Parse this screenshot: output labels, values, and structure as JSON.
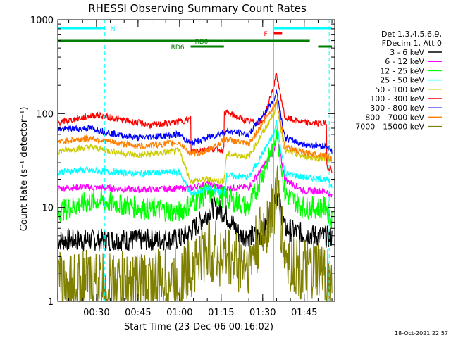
{
  "chart_data": {
    "type": "line",
    "title": "RHESSI Observing Summary Count Rates",
    "ylabel": "Count Rate (s⁻¹ detector⁻¹)",
    "xlabel": "Start Time (23-Dec-06 00:16:02)",
    "timestamp": "18-Oct-2021 22:57",
    "y_scale": "log",
    "ylim": [
      1,
      1000
    ],
    "y_ticks": [
      "1",
      "10",
      "100",
      "1000"
    ],
    "x_range_minutes": [
      "00:16:02",
      "01:56:00"
    ],
    "x_ticks": [
      "00:30",
      "00:45",
      "01:00",
      "01:15",
      "01:30",
      "01:45"
    ],
    "legend_header": [
      "Det 1,3,4,5,6,9,",
      "FDecim 1, Att 0"
    ],
    "flags": [
      {
        "label": "N",
        "color": "#00ffff",
        "segments": [
          [
            "00:16",
            "00:33"
          ],
          [
            "01:34",
            "01:55"
          ]
        ]
      },
      {
        "label": "F",
        "color": "#ff0000",
        "segments": [
          [
            "01:34",
            "01:37"
          ]
        ]
      },
      {
        "label": "RD0",
        "color": "#008000",
        "segments": [
          [
            "00:16",
            "01:16"
          ],
          [
            "01:16",
            "01:47"
          ]
        ]
      },
      {
        "label": "RD6",
        "color": "#008000",
        "segments": [
          [
            "01:04",
            "01:16"
          ],
          [
            "01:50",
            "01:55"
          ]
        ]
      }
    ],
    "vlines": [
      {
        "time": "00:33",
        "color": "#00ffff",
        "style": "dashed"
      },
      {
        "time": "01:34",
        "color": "#00ffff",
        "style": "solid"
      },
      {
        "time": "01:54",
        "color": "#00ffff",
        "style": "dashed"
      }
    ],
    "series": [
      {
        "name": "3 - 6 keV",
        "color": "#000000",
        "knots": [
          [
            "00:16",
            4.5
          ],
          [
            "00:30",
            4.5
          ],
          [
            "00:45",
            4.5
          ],
          [
            "01:00",
            4.6
          ],
          [
            "01:04",
            5.5
          ],
          [
            "01:09",
            8
          ],
          [
            "01:12",
            10
          ],
          [
            "01:16",
            9
          ],
          [
            "01:22",
            5
          ],
          [
            "01:30",
            5
          ],
          [
            "01:34",
            12
          ],
          [
            "01:35",
            15
          ],
          [
            "01:38",
            6
          ],
          [
            "01:45",
            5.2
          ],
          [
            "01:50",
            5
          ],
          [
            "01:55",
            4.8
          ]
        ]
      },
      {
        "name": "6 - 12 keV",
        "color": "#ff00ff",
        "knots": [
          [
            "00:16",
            16
          ],
          [
            "00:25",
            16.5
          ],
          [
            "00:35",
            16
          ],
          [
            "00:45",
            15.5
          ],
          [
            "01:00",
            16
          ],
          [
            "01:04",
            16
          ],
          [
            "01:10",
            18
          ],
          [
            "01:16",
            16
          ],
          [
            "01:25",
            16.5
          ],
          [
            "01:34",
            40
          ],
          [
            "01:35",
            60
          ],
          [
            "01:38",
            20
          ],
          [
            "01:45",
            15
          ],
          [
            "01:53",
            15
          ],
          [
            "01:55",
            13
          ]
        ]
      },
      {
        "name": "12 - 25 keV",
        "color": "#00ff00",
        "knots": [
          [
            "00:16",
            9
          ],
          [
            "00:25",
            11
          ],
          [
            "00:30",
            12
          ],
          [
            "00:45",
            10
          ],
          [
            "01:00",
            9
          ],
          [
            "01:04",
            11
          ],
          [
            "01:10",
            14
          ],
          [
            "01:16",
            13
          ],
          [
            "01:25",
            10
          ],
          [
            "01:34",
            45
          ],
          [
            "01:35",
            70
          ],
          [
            "01:38",
            14
          ],
          [
            "01:45",
            10
          ],
          [
            "01:53",
            10
          ],
          [
            "01:55",
            7.5
          ]
        ]
      },
      {
        "name": "25 - 50 keV",
        "color": "#00ffff",
        "knots": [
          [
            "00:16",
            24
          ],
          [
            "00:25",
            25
          ],
          [
            "00:35",
            24
          ],
          [
            "00:45",
            23
          ],
          [
            "01:00",
            24
          ],
          [
            "01:04",
            14
          ],
          [
            "01:10",
            16
          ],
          [
            "01:16",
            14
          ],
          [
            "01:17",
            22
          ],
          [
            "01:25",
            21
          ],
          [
            "01:34",
            60
          ],
          [
            "01:35",
            80
          ],
          [
            "01:38",
            23
          ],
          [
            "01:45",
            21
          ],
          [
            "01:53",
            20
          ],
          [
            "01:55",
            17
          ]
        ]
      },
      {
        "name": "50 - 100 keV",
        "color": "#cccc00",
        "knots": [
          [
            "00:16",
            40
          ],
          [
            "00:28",
            44
          ],
          [
            "00:35",
            40
          ],
          [
            "00:45",
            36
          ],
          [
            "01:00",
            40
          ],
          [
            "01:04",
            19
          ],
          [
            "01:10",
            20
          ],
          [
            "01:16",
            19
          ],
          [
            "01:17",
            37
          ],
          [
            "01:25",
            35
          ],
          [
            "01:34",
            100
          ],
          [
            "01:35",
            130
          ],
          [
            "01:38",
            40
          ],
          [
            "01:45",
            35
          ],
          [
            "01:53",
            33
          ],
          [
            "01:55",
            30
          ]
        ]
      },
      {
        "name": "100 - 300 keV",
        "color": "#ff0000",
        "knots": [
          [
            "00:16",
            80
          ],
          [
            "00:30",
            97
          ],
          [
            "00:40",
            85
          ],
          [
            "00:50",
            75
          ],
          [
            "01:00",
            82
          ],
          [
            "01:04",
            88
          ],
          [
            "01:04",
            40
          ],
          [
            "01:10",
            42
          ],
          [
            "01:16",
            41
          ],
          [
            "01:16",
            105
          ],
          [
            "01:25",
            82
          ],
          [
            "01:30",
            80
          ],
          [
            "01:34",
            200
          ],
          [
            "01:35",
            265
          ],
          [
            "01:38",
            90
          ],
          [
            "01:45",
            80
          ],
          [
            "01:53",
            78
          ],
          [
            "01:53",
            28
          ],
          [
            "01:55",
            25
          ]
        ]
      },
      {
        "name": "300 - 800 keV",
        "color": "#0000ff",
        "knots": [
          [
            "00:16",
            68
          ],
          [
            "00:28",
            70
          ],
          [
            "00:35",
            62
          ],
          [
            "00:45",
            55
          ],
          [
            "01:00",
            60
          ],
          [
            "01:04",
            48
          ],
          [
            "01:10",
            55
          ],
          [
            "01:16",
            64
          ],
          [
            "01:17",
            65
          ],
          [
            "01:25",
            60
          ],
          [
            "01:34",
            140
          ],
          [
            "01:35",
            175
          ],
          [
            "01:38",
            55
          ],
          [
            "01:45",
            47
          ],
          [
            "01:53",
            45
          ],
          [
            "01:55",
            40
          ]
        ]
      },
      {
        "name": "800 - 7000 keV",
        "color": "#ff8000",
        "knots": [
          [
            "00:16",
            50
          ],
          [
            "00:28",
            55
          ],
          [
            "00:35",
            50
          ],
          [
            "00:45",
            45
          ],
          [
            "01:00",
            49
          ],
          [
            "01:04",
            37
          ],
          [
            "01:10",
            40
          ],
          [
            "01:16",
            52
          ],
          [
            "01:17",
            53
          ],
          [
            "01:25",
            47
          ],
          [
            "01:34",
            120
          ],
          [
            "01:35",
            140
          ],
          [
            "01:38",
            45
          ],
          [
            "01:45",
            38
          ],
          [
            "01:53",
            36
          ],
          [
            "01:55",
            33
          ]
        ]
      },
      {
        "name": "7000 - 15000 keV",
        "color": "#808000",
        "knots": [
          [
            "00:16",
            1.5
          ],
          [
            "00:25",
            1.6
          ],
          [
            "00:35",
            1.5
          ],
          [
            "00:45",
            1.6
          ],
          [
            "01:00",
            1.7
          ],
          [
            "01:05",
            2.5
          ],
          [
            "01:10",
            3.5
          ],
          [
            "01:16",
            3
          ],
          [
            "01:25",
            2.5
          ],
          [
            "01:34",
            10
          ],
          [
            "01:35",
            16
          ],
          [
            "01:38",
            3
          ],
          [
            "01:45",
            2
          ],
          [
            "01:53",
            2
          ],
          [
            "01:55",
            1.5
          ]
        ]
      }
    ]
  }
}
